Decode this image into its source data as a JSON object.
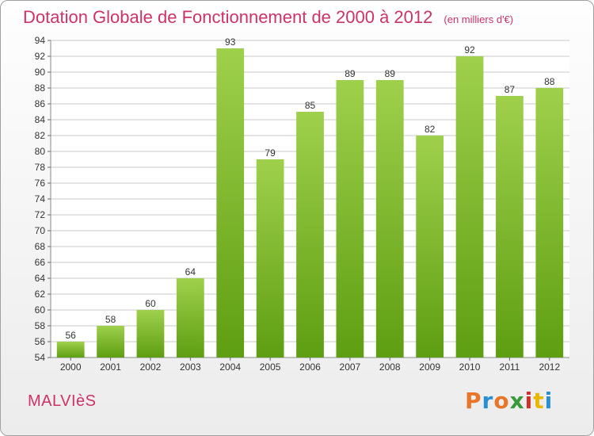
{
  "header": {
    "title": "Dotation Globale de Fonctionnement de 2000 à 2012",
    "unit": "(en milliers d'€)"
  },
  "footer": {
    "commune": "MALVIèS",
    "logo_text": "Proxiti",
    "logo_colors": [
      "#e8762a",
      "#2a8fd0",
      "#e8762a",
      "#3a9a3a",
      "#d0302a",
      "#e8b800",
      "#2a8fd0"
    ]
  },
  "colors": {
    "bar_light": "#9fd04c",
    "bar_dark": "#5e9e12",
    "grid": "#c8c8c8"
  },
  "chart_data": {
    "type": "bar",
    "title": "Dotation Globale de Fonctionnement de 2000 à 2012",
    "xlabel": "",
    "ylabel": "",
    "categories": [
      "2000",
      "2001",
      "2002",
      "2003",
      "2004",
      "2005",
      "2006",
      "2007",
      "2008",
      "2009",
      "2010",
      "2011",
      "2012"
    ],
    "values": [
      56,
      58,
      60,
      64,
      93,
      79,
      85,
      89,
      89,
      82,
      92,
      87,
      88
    ],
    "ylim": [
      54,
      94
    ],
    "ytick_step": 2,
    "grid": true,
    "data_labels": true
  }
}
